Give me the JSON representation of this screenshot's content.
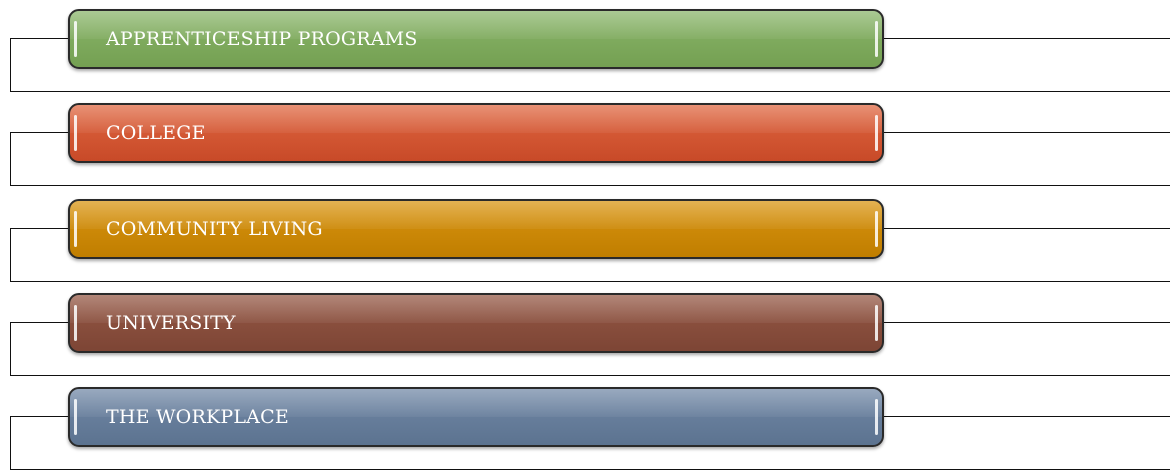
{
  "items": [
    {
      "label": "APPRENTICESHIP PROGRAMS",
      "color": "#7aa75a"
    },
    {
      "label": "COLLEGE",
      "color": "#d1552f"
    },
    {
      "label": "COMMUNITY LIVING",
      "color": "#c98a06"
    },
    {
      "label": "UNIVERSITY",
      "color": "#874e3d"
    },
    {
      "label": "THE WORKPLACE",
      "color": "#637a98"
    }
  ]
}
